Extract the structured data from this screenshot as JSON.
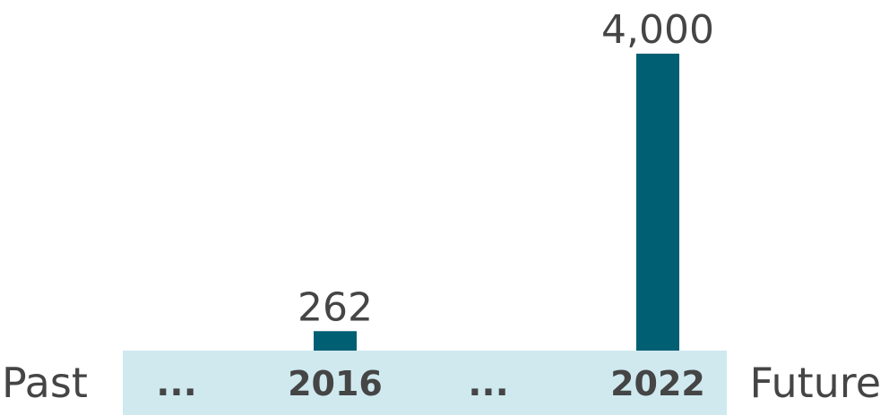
{
  "chart_data": {
    "type": "bar",
    "categories": [
      "...",
      "2016",
      "...",
      "2022"
    ],
    "values": [
      null,
      262,
      null,
      4000
    ],
    "value_labels": [
      "",
      "262",
      "",
      "4,000"
    ],
    "ylim": [
      0,
      4000
    ],
    "axis_left_label": "Past",
    "axis_right_label": "Future",
    "grid": false
  },
  "colors": {
    "bar": "#005f73",
    "band": "#cfe9ef",
    "text": "#454545"
  }
}
